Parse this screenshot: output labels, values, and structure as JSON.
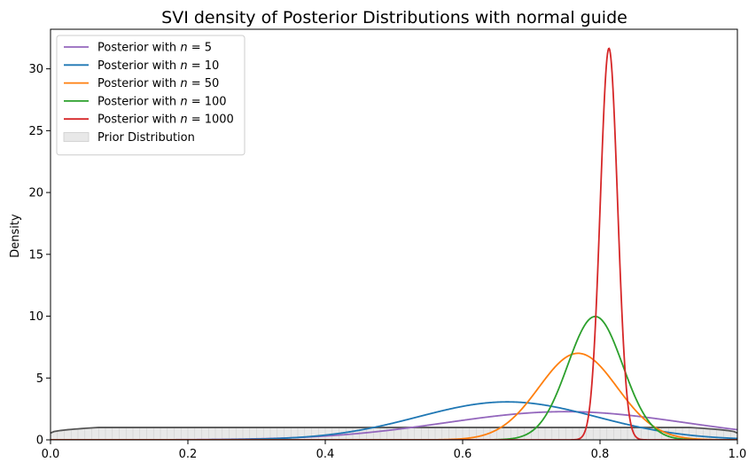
{
  "chart_data": {
    "type": "line",
    "title": "SVI density of Posterior Distributions with normal guide",
    "xlabel": "",
    "ylabel": "Density",
    "xlim": [
      0.0,
      1.0
    ],
    "ylim": [
      0,
      33.2
    ],
    "xticks": [
      0.0,
      0.2,
      0.4,
      0.6,
      0.8,
      1.0
    ],
    "xtick_labels": [
      "0.0",
      "0.2",
      "0.4",
      "0.6",
      "0.8",
      "1.0"
    ],
    "yticks": [
      0,
      5,
      10,
      15,
      20,
      25,
      30
    ],
    "ytick_labels": [
      "0",
      "5",
      "10",
      "15",
      "20",
      "25",
      "30"
    ],
    "grid": false,
    "legend_position": "top-left",
    "series": [
      {
        "name": "Posterior with n = 5",
        "label_prefix": "Posterior with ",
        "label_var": "n",
        "label_value": "= 5",
        "color": "#9467bd",
        "mu": 0.75,
        "sigma": 0.175
      },
      {
        "name": "Posterior with n = 10",
        "label_prefix": "Posterior with ",
        "label_var": "n",
        "label_value": "= 10",
        "color": "#1f77b4",
        "mu": 0.665,
        "sigma": 0.13
      },
      {
        "name": "Posterior with n = 50",
        "label_prefix": "Posterior with ",
        "label_var": "n",
        "label_value": "= 50",
        "color": "#ff7f0e",
        "mu": 0.768,
        "sigma": 0.057
      },
      {
        "name": "Posterior with n = 100",
        "label_prefix": "Posterior with ",
        "label_var": "n",
        "label_value": "= 100",
        "color": "#2ca02c",
        "mu": 0.793,
        "sigma": 0.04
      },
      {
        "name": "Posterior with n = 1000",
        "label_prefix": "Posterior with ",
        "label_var": "n",
        "label_value": "= 1000",
        "color": "#d62728",
        "mu": 0.813,
        "sigma": 0.0126
      }
    ],
    "prior": {
      "name": "Prior Distribution",
      "value": 1.0,
      "fill": "#e8e8e8",
      "line_color": "#555555"
    }
  }
}
